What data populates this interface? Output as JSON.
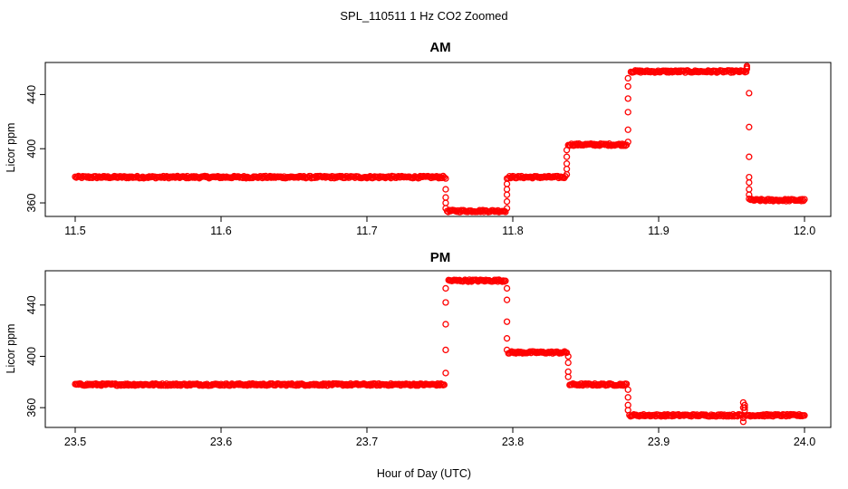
{
  "figure": {
    "title": "SPL_110511  1 Hz CO2 Zoomed",
    "xlabel": "Hour of Day (UTC)",
    "marker_color": "#ff0000"
  },
  "chart_data": [
    {
      "type": "scatter",
      "title": "AM",
      "xlabel": "",
      "ylabel": "Licor ppm",
      "xlim": [
        11.5,
        12.0
      ],
      "ylim": [
        352,
        463
      ],
      "xticks": [
        11.5,
        11.6,
        11.7,
        11.8,
        11.9,
        12.0
      ],
      "xtick_labels": [
        "11.5",
        "11.6",
        "11.7",
        "11.8",
        "11.9",
        "12.0"
      ],
      "yticks": [
        360,
        400,
        440
      ],
      "ytick_labels": [
        "360",
        "400",
        "440"
      ],
      "grid": false,
      "series": [
        {
          "color": "#ff0000",
          "marker": "open-circle",
          "segments": [
            {
              "x_start": 11.5,
              "x_end": 11.753,
              "y": 379
            },
            {
              "x_start": 11.755,
              "x_end": 11.795,
              "y": 354
            },
            {
              "x_start": 11.797,
              "x_end": 11.836,
              "y": 379
            },
            {
              "x_start": 11.838,
              "x_end": 11.878,
              "y": 403
            },
            {
              "x_start": 11.881,
              "x_end": 11.96,
              "y": 457
            },
            {
              "x_start": 11.963,
              "x_end": 12.0,
              "y": 362
            }
          ],
          "transitions": [
            {
              "x": 11.754,
              "y": [
                378,
                370,
                364,
                360,
                356
              ]
            },
            {
              "x": 11.796,
              "y": [
                356,
                361,
                366,
                370,
                374,
                378
              ]
            },
            {
              "x": 11.837,
              "y": [
                381,
                385,
                389,
                394,
                399
              ]
            },
            {
              "x": 11.879,
              "y": [
                405,
                414,
                427,
                437,
                446,
                452
              ]
            },
            {
              "x": 11.9605,
              "y": [
                459,
                460,
                461
              ]
            },
            {
              "x": 11.962,
              "y": [
                441,
                416,
                394,
                379,
                375,
                370,
                366,
                363
              ]
            }
          ]
        }
      ]
    },
    {
      "type": "scatter",
      "title": "PM",
      "xlabel": "Hour of Day (UTC)",
      "ylabel": "Licor ppm",
      "xlim": [
        23.5,
        24.0
      ],
      "ylim": [
        346,
        466
      ],
      "xticks": [
        23.5,
        23.6,
        23.7,
        23.8,
        23.9,
        24.0
      ],
      "xtick_labels": [
        "23.5",
        "23.6",
        "23.7",
        "23.8",
        "23.9",
        "24.0"
      ],
      "yticks": [
        360,
        400,
        440
      ],
      "ytick_labels": [
        "360",
        "400",
        "440"
      ],
      "grid": false,
      "series": [
        {
          "color": "#ff0000",
          "marker": "open-circle",
          "segments": [
            {
              "x_start": 23.5,
              "x_end": 23.753,
              "y": 378
            },
            {
              "x_start": 23.756,
              "x_end": 23.795,
              "y": 459
            },
            {
              "x_start": 23.797,
              "x_end": 23.837,
              "y": 403
            },
            {
              "x_start": 23.839,
              "x_end": 23.878,
              "y": 378
            },
            {
              "x_start": 23.88,
              "x_end": 23.957,
              "y": 354
            },
            {
              "x_start": 23.96,
              "x_end": 24.0,
              "y": 354
            }
          ],
          "transitions": [
            {
              "x": 23.754,
              "y": [
                387,
                405,
                425,
                442,
                453
              ]
            },
            {
              "x": 23.796,
              "y": [
                453,
                444,
                427,
                414,
                405
              ]
            },
            {
              "x": 23.838,
              "y": [
                400,
                395,
                388,
                384
              ]
            },
            {
              "x": 23.879,
              "y": [
                374,
                368,
                362,
                358
              ]
            },
            {
              "x": 23.958,
              "y": [
                349,
                352,
                360,
                364
              ]
            },
            {
              "x": 23.959,
              "y": [
                362,
                360,
                358
              ]
            }
          ]
        }
      ]
    }
  ]
}
